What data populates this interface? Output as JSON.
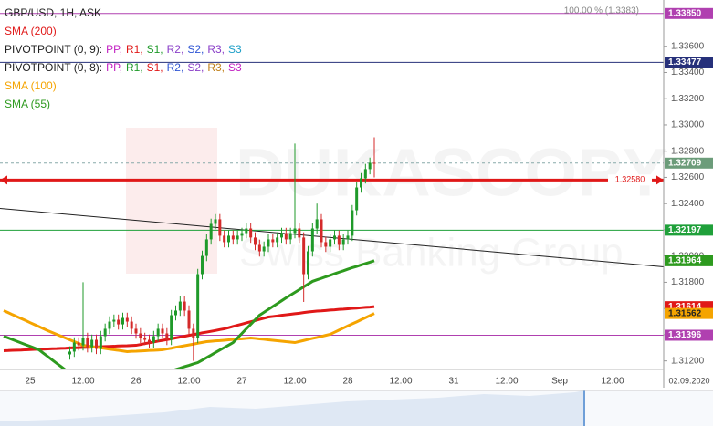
{
  "chart_data": {
    "type": "candlestick",
    "title": "GBP/USD, 1H, ASK",
    "watermark": [
      "DUKASCOPY",
      "Swiss Banking Group"
    ],
    "fibo_label": "100.00 % (1.3383)",
    "cursor_date": "02.09.2020",
    "up_color": "#1f9a2a",
    "down_color": "#d42a2a",
    "categories": [
      null,
      null,
      null,
      null,
      null,
      null,
      "25",
      null,
      null,
      null,
      null,
      null,
      null,
      null,
      null,
      null,
      null,
      null,
      "12:00",
      null,
      null,
      null,
      null,
      null,
      null,
      null,
      null,
      null,
      null,
      null,
      "26",
      null,
      null,
      null,
      null,
      null,
      null,
      null,
      null,
      null,
      null,
      null,
      "12:00",
      null,
      null,
      null,
      null,
      null,
      null,
      null,
      null,
      null,
      null,
      null,
      "27",
      null,
      null,
      null,
      null,
      null,
      null,
      null,
      null,
      null,
      null,
      null,
      "12:00",
      null,
      null,
      null,
      null,
      null,
      null,
      null,
      null,
      null,
      null,
      null,
      "28",
      null,
      null,
      null,
      null,
      null,
      null,
      null,
      null,
      null,
      null,
      null,
      "12:00",
      null,
      null,
      null,
      null,
      null,
      null,
      null,
      null,
      null,
      null,
      null,
      "31",
      null,
      null,
      null,
      null,
      null,
      null,
      null,
      null,
      null,
      null,
      null,
      "12:00",
      null,
      null,
      null,
      null,
      null,
      null,
      null,
      null,
      null,
      null,
      null,
      "Sep",
      null,
      null,
      null,
      null,
      null,
      null,
      null,
      null,
      null,
      null,
      null,
      "12:00"
    ],
    "ohlc": [
      null,
      null,
      null,
      null,
      null,
      null,
      null,
      null,
      null,
      null,
      null,
      null,
      null,
      null,
      null,
      [
        1.3125,
        1.31311,
        1.3121,
        1.31271
      ],
      [
        1.31271,
        1.3138,
        1.31231,
        1.3134
      ],
      [
        1.3134,
        1.3138,
        1.31279,
        1.31319
      ],
      [
        1.31319,
        1.318,
        1.31279,
        1.31375
      ],
      [
        1.31375,
        1.31415,
        1.31265,
        1.31305
      ],
      [
        1.31305,
        1.31401,
        1.31265,
        1.31361
      ],
      [
        1.31361,
        1.31401,
        1.31252,
        1.31292
      ],
      [
        1.31292,
        1.31429,
        1.31252,
        1.31389
      ],
      [
        1.31389,
        1.31485,
        1.31349,
        1.31445
      ],
      [
        1.31445,
        1.3154,
        1.31405,
        1.315
      ],
      [
        1.315,
        1.31554,
        1.3146,
        1.31514
      ],
      [
        1.31514,
        1.31554,
        1.31439,
        1.31479
      ],
      [
        1.31479,
        1.31568,
        1.31439,
        1.31528
      ],
      [
        1.31528,
        1.31568,
        1.3146,
        1.315
      ],
      [
        1.315,
        1.3154,
        1.31405,
        1.31445
      ],
      [
        1.31445,
        1.31485,
        1.3137,
        1.3141
      ],
      [
        1.3141,
        1.3145,
        1.31335,
        1.31375
      ],
      [
        1.31375,
        1.31415,
        1.31321,
        1.31361
      ],
      [
        1.31361,
        1.31401,
        1.313,
        1.3134
      ],
      [
        1.3134,
        1.31429,
        1.313,
        1.31389
      ],
      [
        1.31389,
        1.31485,
        1.31349,
        1.31445
      ],
      [
        1.31445,
        1.31485,
        1.3137,
        1.3141
      ],
      [
        1.3141,
        1.3145,
        1.31321,
        1.31361
      ],
      [
        1.31361,
        1.31589,
        1.31321,
        1.31549
      ],
      [
        1.31549,
        1.31624,
        1.31509,
        1.31584
      ],
      [
        1.31584,
        1.31693,
        1.31544,
        1.31653
      ],
      [
        1.31653,
        1.31693,
        1.31544,
        1.31584
      ],
      [
        1.31584,
        1.31624,
        1.31405,
        1.31445
      ],
      [
        1.31445,
        1.31485,
        1.312,
        1.31375
      ],
      [
        1.31375,
        1.31902,
        1.31335,
        1.31862
      ],
      [
        1.31862,
        1.32041,
        1.31822,
        1.32001
      ],
      [
        1.32001,
        1.32167,
        1.31961,
        1.32127
      ],
      [
        1.32127,
        1.32285,
        1.32087,
        1.32245
      ],
      [
        1.32245,
        1.3232,
        1.32205,
        1.3228
      ],
      [
        1.3228,
        1.3232,
        1.32115,
        1.32155
      ],
      [
        1.32155,
        1.32195,
        1.32066,
        1.32106
      ],
      [
        1.32106,
        1.32195,
        1.32066,
        1.32155
      ],
      [
        1.32155,
        1.32195,
        1.32087,
        1.32127
      ],
      [
        1.32127,
        1.32195,
        1.32087,
        1.32155
      ],
      [
        1.32155,
        1.32215,
        1.32115,
        1.32175
      ],
      [
        1.32175,
        1.3225,
        1.32135,
        1.3221
      ],
      [
        1.3221,
        1.3225,
        1.32101,
        1.32141
      ],
      [
        1.32141,
        1.32181,
        1.32045,
        1.32085
      ],
      [
        1.32085,
        1.32125,
        1.31996,
        1.32036
      ],
      [
        1.32036,
        1.32111,
        1.31996,
        1.32071
      ],
      [
        1.32071,
        1.32167,
        1.32031,
        1.32127
      ],
      [
        1.32127,
        1.32167,
        1.32066,
        1.32106
      ],
      [
        1.32106,
        1.32181,
        1.32066,
        1.32141
      ],
      [
        1.32141,
        1.32215,
        1.32101,
        1.32175
      ],
      [
        1.32175,
        1.32215,
        1.32087,
        1.32127
      ],
      [
        1.32127,
        1.32215,
        1.32087,
        1.32175
      ],
      [
        1.32175,
        1.32858,
        1.32135,
        1.3221
      ],
      [
        1.3221,
        1.3225,
        1.32101,
        1.32141
      ],
      [
        1.32141,
        1.32181,
        1.3165,
        1.31862
      ],
      [
        1.31862,
        1.32076,
        1.31822,
        1.32036
      ],
      [
        1.32036,
        1.3225,
        1.31996,
        1.3221
      ],
      [
        1.3221,
        1.324,
        1.3217,
        1.3228
      ],
      [
        1.3228,
        1.3232,
        1.32066,
        1.32106
      ],
      [
        1.32106,
        1.32146,
        1.32031,
        1.32071
      ],
      [
        1.32071,
        1.32167,
        1.32031,
        1.32127
      ],
      [
        1.32127,
        1.32195,
        1.32087,
        1.32155
      ],
      [
        1.32155,
        1.32195,
        1.32045,
        1.32085
      ],
      [
        1.32085,
        1.32167,
        1.32045,
        1.32127
      ],
      [
        1.32127,
        1.32195,
        1.32087,
        1.32155
      ],
      [
        1.32155,
        1.32389,
        1.32115,
        1.32349
      ],
      [
        1.32349,
        1.32563,
        1.32309,
        1.32523
      ],
      [
        1.32523,
        1.32633,
        1.32483,
        1.32593
      ],
      [
        1.32593,
        1.32703,
        1.32553,
        1.32663
      ],
      [
        1.32663,
        1.32751,
        1.32623,
        1.32711
      ],
      [
        1.32711,
        1.32906,
        1.326,
        1.32709
      ],
      null,
      null,
      null,
      null,
      null,
      null,
      null,
      null,
      null,
      null,
      null,
      null,
      null,
      null,
      null,
      null,
      null,
      null,
      null,
      null,
      null,
      null,
      null,
      null,
      null,
      null,
      null,
      null,
      null,
      null,
      null,
      null,
      null,
      null,
      null,
      null,
      null,
      null,
      null,
      null,
      null,
      null,
      null,
      null,
      null,
      null,
      null,
      null,
      null,
      null,
      null,
      null,
      null,
      null
    ],
    "series": [
      {
        "name": "SMA (200)",
        "color": "#e01818",
        "values": [
          1.31278,
          1.31279,
          1.31281,
          1.31282,
          1.31283,
          1.31285,
          1.31286,
          1.31288,
          1.31289,
          1.3129,
          1.31292,
          1.31293,
          1.31294,
          1.31296,
          1.31297,
          1.31299,
          1.313,
          1.31301,
          1.31303,
          1.31304,
          1.31305,
          1.31307,
          1.31308,
          1.3131,
          1.31311,
          1.31312,
          1.31314,
          1.31315,
          1.31316,
          1.31318,
          1.31319,
          1.31325,
          1.31332,
          1.31338,
          1.31344,
          1.31351,
          1.31357,
          1.31363,
          1.31369,
          1.31376,
          1.31382,
          1.31388,
          1.31395,
          1.31401,
          1.31407,
          1.31414,
          1.3142,
          1.31426,
          1.31432,
          1.31439,
          1.31445,
          1.31454,
          1.31463,
          1.31472,
          1.31481,
          1.3149,
          1.31499,
          1.31508,
          1.31517,
          1.31526,
          1.31535,
          1.31539,
          1.31543,
          1.31548,
          1.31552,
          1.31556,
          1.3156,
          1.31564,
          1.31569,
          1.31573,
          1.31577,
          1.3158,
          1.31582,
          1.31585,
          1.31588,
          1.3159,
          1.31593,
          1.31595,
          1.31598,
          1.31601,
          1.31603,
          1.31606,
          1.31609,
          1.31611,
          1.31614,
          null,
          null,
          null,
          null,
          null,
          null,
          null,
          null,
          null,
          null,
          null,
          null,
          null,
          null,
          null,
          null,
          null,
          null,
          null,
          null,
          null,
          null,
          null,
          null,
          null,
          null,
          null,
          null,
          null,
          null,
          null,
          null,
          null,
          null,
          null,
          null,
          null,
          null,
          null,
          null,
          null,
          null,
          null,
          null,
          null,
          null,
          null,
          null,
          null,
          null,
          null,
          null,
          null,
          null
        ]
      },
      {
        "name": "SMA (100)",
        "color": "#f5a400",
        "values": [
          1.31584,
          1.31569,
          1.31553,
          1.31538,
          1.31523,
          1.31508,
          1.31492,
          1.31477,
          1.31462,
          1.31446,
          1.31431,
          1.31417,
          1.31403,
          1.31389,
          1.31375,
          1.31361,
          1.31347,
          1.31333,
          1.31319,
          1.31314,
          1.31309,
          1.31305,
          1.313,
          1.31295,
          1.3129,
          1.31285,
          1.31281,
          1.31276,
          1.31271,
          1.31273,
          1.31274,
          1.31276,
          1.31278,
          1.3128,
          1.31281,
          1.31283,
          1.31285,
          1.31291,
          1.31297,
          1.31304,
          1.3131,
          1.31316,
          1.31322,
          1.31328,
          1.31335,
          1.31341,
          1.31347,
          1.3135,
          1.31353,
          1.31355,
          1.31358,
          1.31361,
          1.31364,
          1.31367,
          1.31369,
          1.31372,
          1.31375,
          1.31372,
          1.31368,
          1.31365,
          1.31361,
          1.31358,
          1.31354,
          1.31351,
          1.31347,
          1.31344,
          1.3134,
          1.31348,
          1.31356,
          1.31364,
          1.31372,
          1.31379,
          1.31387,
          1.31395,
          1.31403,
          1.31419,
          1.31435,
          1.31451,
          1.31467,
          1.31483,
          1.31498,
          1.31514,
          1.3153,
          1.31546,
          1.31562,
          null,
          null,
          null,
          null,
          null,
          null,
          null,
          null,
          null,
          null,
          null,
          null,
          null,
          null,
          null,
          null,
          null,
          null,
          null,
          null,
          null,
          null,
          null,
          null,
          null,
          null,
          null,
          null,
          null,
          null,
          null,
          null,
          null,
          null,
          null,
          null,
          null,
          null,
          null,
          null,
          null,
          null,
          null,
          null,
          null,
          null,
          null,
          null,
          null,
          null,
          null,
          null,
          null,
          null
        ]
      },
      {
        "name": "SMA (55)",
        "color": "#2d9a1e",
        "values": [
          1.31389,
          1.31376,
          1.31363,
          1.3135,
          1.31337,
          1.31324,
          1.31311,
          1.31298,
          1.31285,
          1.31259,
          1.31234,
          1.31208,
          1.31182,
          1.31157,
          1.31131,
          1.31122,
          1.31113,
          1.31104,
          1.31095,
          1.31086,
          1.31077,
          1.31068,
          1.31059,
          1.3105,
          1.31041,
          1.31045,
          1.31049,
          1.31054,
          1.31058,
          1.31062,
          1.31066,
          1.3107,
          1.31075,
          1.31079,
          1.31083,
          1.31093,
          1.31104,
          1.31114,
          1.31125,
          1.31135,
          1.31145,
          1.31156,
          1.31166,
          1.31177,
          1.31187,
          1.31206,
          1.31225,
          1.31244,
          1.31264,
          1.31283,
          1.31302,
          1.31321,
          1.3134,
          1.31375,
          1.3141,
          1.31445,
          1.31479,
          1.31514,
          1.31549,
          1.31571,
          1.31593,
          1.31615,
          1.31637,
          1.31659,
          1.31681,
          1.31702,
          1.31723,
          1.31744,
          1.31765,
          1.31786,
          1.31807,
          1.31819,
          1.3183,
          1.31842,
          1.31853,
          1.31865,
          1.31877,
          1.31888,
          1.319,
          1.31911,
          1.31921,
          1.31932,
          1.31943,
          1.31953,
          1.31964,
          null,
          null,
          null,
          null,
          null,
          null,
          null,
          null,
          null,
          null,
          null,
          null,
          null,
          null,
          null,
          null,
          null,
          null,
          null,
          null,
          null,
          null,
          null,
          null,
          null,
          null,
          null,
          null,
          null,
          null,
          null,
          null,
          null,
          null,
          null,
          null,
          null,
          null,
          null,
          null,
          null,
          null,
          null,
          null,
          null,
          null,
          null,
          null,
          null,
          null,
          null,
          null,
          null,
          null
        ]
      }
    ],
    "pivot_legends": [
      {
        "name": "PIVOTPOINT (0, 9):",
        "items": [
          {
            "text": "PP,",
            "color": "#c21fc2"
          },
          {
            "text": "R1,",
            "color": "#e01818"
          },
          {
            "text": "S1,",
            "color": "#1f9a2a"
          },
          {
            "text": "R2,",
            "color": "#8a3fc8"
          },
          {
            "text": "S2,",
            "color": "#2f55d4"
          },
          {
            "text": "R3,",
            "color": "#8a3fc8"
          },
          {
            "text": "S3",
            "color": "#1fa0c8"
          }
        ]
      },
      {
        "name": "PIVOTPOINT (0, 8):",
        "items": [
          {
            "text": "PP,",
            "color": "#c21fc2"
          },
          {
            "text": "R1,",
            "color": "#1f9a2a"
          },
          {
            "text": "S1,",
            "color": "#e01818"
          },
          {
            "text": "R2,",
            "color": "#2f55d4"
          },
          {
            "text": "S2,",
            "color": "#8a3fc8"
          },
          {
            "text": "R3,",
            "color": "#c0801a"
          },
          {
            "text": "S3",
            "color": "#c21fc2"
          }
        ]
      }
    ],
    "levels": [
      {
        "value": 1.3385,
        "label": "1.33850",
        "color": "#b040b0",
        "style": "box"
      },
      {
        "value": 1.33477,
        "label": "1.33477",
        "color": "#26307a",
        "style": "box"
      },
      {
        "value": 1.32709,
        "label": "1.32709",
        "color": "#6c9c7a",
        "style": "dashed"
      },
      {
        "value": 1.3258,
        "label": "1.32580",
        "color": "#e01818",
        "style": "arrow"
      },
      {
        "value": 1.32197,
        "label": "1.32197",
        "color": "#1fa03a",
        "style": "box"
      },
      {
        "value": 1.31396,
        "label": "1.31396",
        "color": "#b040b0",
        "style": "box"
      }
    ],
    "trendline": [
      1.32363,
      1.31918
    ],
    "ylim": [
      1.31135,
      1.33953
    ],
    "yticks": [
      {
        "value": 1.312,
        "label": "1.31200"
      },
      {
        "value": 1.314,
        "label": "1.31400"
      },
      {
        "value": 1.316,
        "label": "1.31600"
      },
      {
        "value": 1.318,
        "label": "1.31800"
      },
      {
        "value": 1.32,
        "label": "1.32000"
      },
      {
        "value": 1.322,
        "label": "1.32200"
      },
      {
        "value": 1.324,
        "label": "1.32400"
      },
      {
        "value": 1.326,
        "label": "1.32600"
      },
      {
        "value": 1.328,
        "label": "1.32800"
      },
      {
        "value": 1.33,
        "label": "1.33000"
      },
      {
        "value": 1.332,
        "label": "1.33200"
      },
      {
        "value": 1.334,
        "label": "1.33400"
      },
      {
        "value": 1.336,
        "label": "1.33600"
      }
    ]
  }
}
